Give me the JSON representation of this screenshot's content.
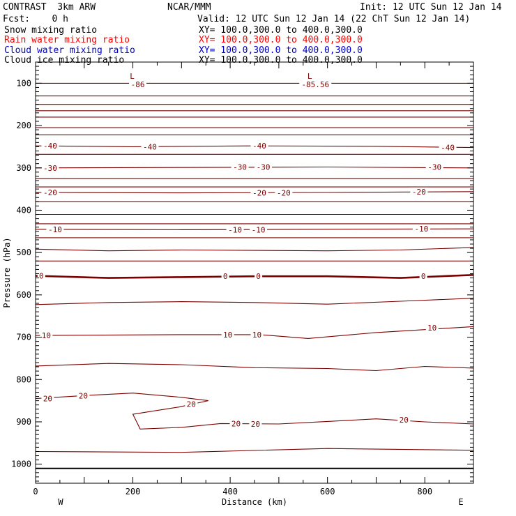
{
  "header": {
    "title": "CONTRAST  3km ARW",
    "center": "NCAR/MMM",
    "init": "Init: 12 UTC Sun 12 Jan 14",
    "fcst": "Fcst:    0 h",
    "valid": "Valid: 12 UTC Sun 12 Jan 14 (22 ChT Sun 12 Jan 14)"
  },
  "legend": [
    {
      "name": "Snow mixing ratio",
      "xy": "XY= 100.0,300.0 to 400.0,300.0",
      "color": "#000000"
    },
    {
      "name": "Rain water mixing ratio",
      "xy": "XY= 100.0,300.0 to 400.0,300.0",
      "color": "#ff0000"
    },
    {
      "name": "Cloud water mixing ratio",
      "xy": "XY= 100.0,300.0 to 400.0,300.0",
      "color": "#0000c8"
    },
    {
      "name": "Cloud ice mixing ratio",
      "xy": "XY= 100.0,300.0 to 400.0,300.0",
      "color": "#000000"
    }
  ],
  "chart_data": {
    "type": "line",
    "xlabel": "Distance (km)",
    "ylabel": "Pressure (hPa)",
    "xlim": [
      0,
      900
    ],
    "ylim": [
      50,
      1045
    ],
    "xticks": [
      0,
      200,
      400,
      600,
      800
    ],
    "yticks": [
      100,
      200,
      300,
      400,
      500,
      600,
      700,
      800,
      900,
      1000
    ],
    "x_end_labels": {
      "left": "W",
      "right": "E"
    },
    "surface_pressure": 1010,
    "contour_color": "#7a0000",
    "isotherms": [
      {
        "points": [
          [
            0,
            100
          ],
          [
            900,
            100
          ]
        ],
        "labels": []
      },
      {
        "points": [
          [
            0,
            130
          ],
          [
            900,
            130
          ]
        ],
        "labels": []
      },
      {
        "points": [
          [
            0,
            150
          ],
          [
            900,
            150
          ]
        ],
        "labels": []
      },
      {
        "points": [
          [
            0,
            165
          ],
          [
            900,
            165
          ]
        ],
        "labels": []
      },
      {
        "points": [
          [
            0,
            180
          ],
          [
            900,
            180
          ]
        ],
        "labels": []
      },
      {
        "points": [
          [
            0,
            205
          ],
          [
            900,
            205
          ]
        ],
        "labels": []
      },
      {
        "points": [
          [
            0,
            222
          ],
          [
            900,
            222
          ]
        ],
        "labels": []
      },
      {
        "points": [
          [
            0,
            248
          ],
          [
            200,
            250
          ],
          [
            450,
            248
          ],
          [
            700,
            249
          ],
          [
            900,
            252
          ]
        ],
        "labels": [
          {
            "x": 30,
            "p": 248,
            "text": "-40"
          },
          {
            "x": 235,
            "p": 250,
            "text": "-40"
          },
          {
            "x": 460,
            "p": 248,
            "text": "-40"
          },
          {
            "x": 847,
            "p": 252,
            "text": "-40"
          }
        ]
      },
      {
        "points": [
          [
            0,
            268
          ],
          [
            900,
            268
          ]
        ],
        "labels": []
      },
      {
        "points": [
          [
            0,
            300
          ],
          [
            300,
            299
          ],
          [
            600,
            298
          ],
          [
            900,
            300
          ]
        ],
        "labels": [
          {
            "x": 30,
            "p": 300,
            "text": "-30"
          },
          {
            "x": 420,
            "p": 298,
            "text": "-30"
          },
          {
            "x": 468,
            "p": 298,
            "text": "-30"
          },
          {
            "x": 820,
            "p": 298,
            "text": "-30"
          }
        ]
      },
      {
        "points": [
          [
            0,
            325
          ],
          [
            900,
            325
          ]
        ],
        "labels": []
      },
      {
        "points": [
          [
            0,
            345
          ],
          [
            900,
            345
          ]
        ],
        "labels": []
      },
      {
        "points": [
          [
            0,
            358
          ],
          [
            300,
            359
          ],
          [
            600,
            358
          ],
          [
            900,
            356
          ]
        ],
        "labels": [
          {
            "x": 30,
            "p": 358,
            "text": "-20"
          },
          {
            "x": 460,
            "p": 359,
            "text": "-20"
          },
          {
            "x": 510,
            "p": 359,
            "text": "-20"
          },
          {
            "x": 788,
            "p": 356,
            "text": "-20"
          }
        ]
      },
      {
        "points": [
          [
            0,
            380
          ],
          [
            900,
            380
          ]
        ],
        "labels": []
      },
      {
        "points": [
          [
            0,
            410
          ],
          [
            900,
            410
          ]
        ],
        "labels": []
      },
      {
        "points": [
          [
            0,
            432
          ],
          [
            900,
            432
          ]
        ],
        "labels": []
      },
      {
        "points": [
          [
            0,
            445
          ],
          [
            300,
            446
          ],
          [
            600,
            445
          ],
          [
            900,
            444
          ]
        ],
        "labels": [
          {
            "x": 40,
            "p": 445,
            "text": "-10"
          },
          {
            "x": 410,
            "p": 446,
            "text": "-10"
          },
          {
            "x": 458,
            "p": 446,
            "text": "-10"
          },
          {
            "x": 793,
            "p": 444,
            "text": "-10"
          }
        ]
      },
      {
        "points": [
          [
            0,
            465
          ],
          [
            900,
            465
          ]
        ],
        "labels": []
      },
      {
        "points": [
          [
            0,
            492
          ],
          [
            150,
            496
          ],
          [
            300,
            494
          ],
          [
            450,
            495
          ],
          [
            600,
            496
          ],
          [
            750,
            494
          ],
          [
            900,
            488
          ]
        ],
        "labels": []
      },
      {
        "points": [
          [
            0,
            520
          ],
          [
            900,
            520
          ]
        ],
        "labels": []
      },
      {
        "points": [
          [
            0,
            555
          ],
          [
            150,
            560
          ],
          [
            300,
            558
          ],
          [
            450,
            556
          ],
          [
            600,
            556
          ],
          [
            750,
            560
          ],
          [
            900,
            553
          ]
        ],
        "labels": [
          {
            "x": 12,
            "p": 555,
            "text": "0"
          },
          {
            "x": 390,
            "p": 556,
            "text": "0"
          },
          {
            "x": 458,
            "p": 556,
            "text": "0"
          },
          {
            "x": 797,
            "p": 556,
            "text": "0"
          }
        ]
      },
      {
        "points": [
          [
            0,
            623
          ],
          [
            150,
            618
          ],
          [
            300,
            616
          ],
          [
            450,
            618
          ],
          [
            600,
            622
          ],
          [
            750,
            615
          ],
          [
            900,
            608
          ]
        ],
        "labels": []
      },
      {
        "points": [
          [
            0,
            696
          ],
          [
            300,
            694
          ],
          [
            460,
            694
          ],
          [
            560,
            703
          ],
          [
            700,
            689
          ],
          [
            900,
            675
          ]
        ],
        "labels": [
          {
            "x": 22,
            "p": 696,
            "text": "10"
          },
          {
            "x": 395,
            "p": 694,
            "text": "10"
          },
          {
            "x": 455,
            "p": 694,
            "text": "10"
          },
          {
            "x": 815,
            "p": 678,
            "text": "10"
          }
        ]
      },
      {
        "points": [
          [
            0,
            768
          ],
          [
            150,
            762
          ],
          [
            300,
            765
          ],
          [
            450,
            772
          ],
          [
            600,
            774
          ],
          [
            700,
            779
          ],
          [
            800,
            769
          ],
          [
            900,
            773
          ]
        ],
        "labels": []
      },
      {
        "points": [
          [
            0,
            845
          ],
          [
            100,
            838
          ],
          [
            200,
            832
          ],
          [
            300,
            842
          ],
          [
            355,
            850
          ],
          [
            295,
            865
          ],
          [
            200,
            882
          ],
          [
            215,
            917
          ],
          [
            300,
            913
          ],
          [
            380,
            904
          ],
          [
            500,
            905
          ],
          [
            600,
            899
          ],
          [
            700,
            893
          ],
          [
            800,
            900
          ],
          [
            900,
            905
          ]
        ],
        "labels": [
          {
            "x": 25,
            "p": 845,
            "text": "20"
          },
          {
            "x": 98,
            "p": 838,
            "text": "20"
          },
          {
            "x": 320,
            "p": 858,
            "text": "20"
          },
          {
            "x": 412,
            "p": 904,
            "text": "20"
          },
          {
            "x": 452,
            "p": 905,
            "text": "20"
          },
          {
            "x": 757,
            "p": 895,
            "text": "20"
          }
        ]
      },
      {
        "points": [
          [
            0,
            970
          ],
          [
            300,
            972
          ],
          [
            600,
            963
          ],
          [
            900,
            967
          ]
        ],
        "labels": []
      }
    ],
    "lows": [
      {
        "x": 200,
        "p": 80,
        "text": "L",
        "value": "-86"
      },
      {
        "x": 565,
        "p": 80,
        "text": "L",
        "value": "-85.56"
      }
    ]
  }
}
